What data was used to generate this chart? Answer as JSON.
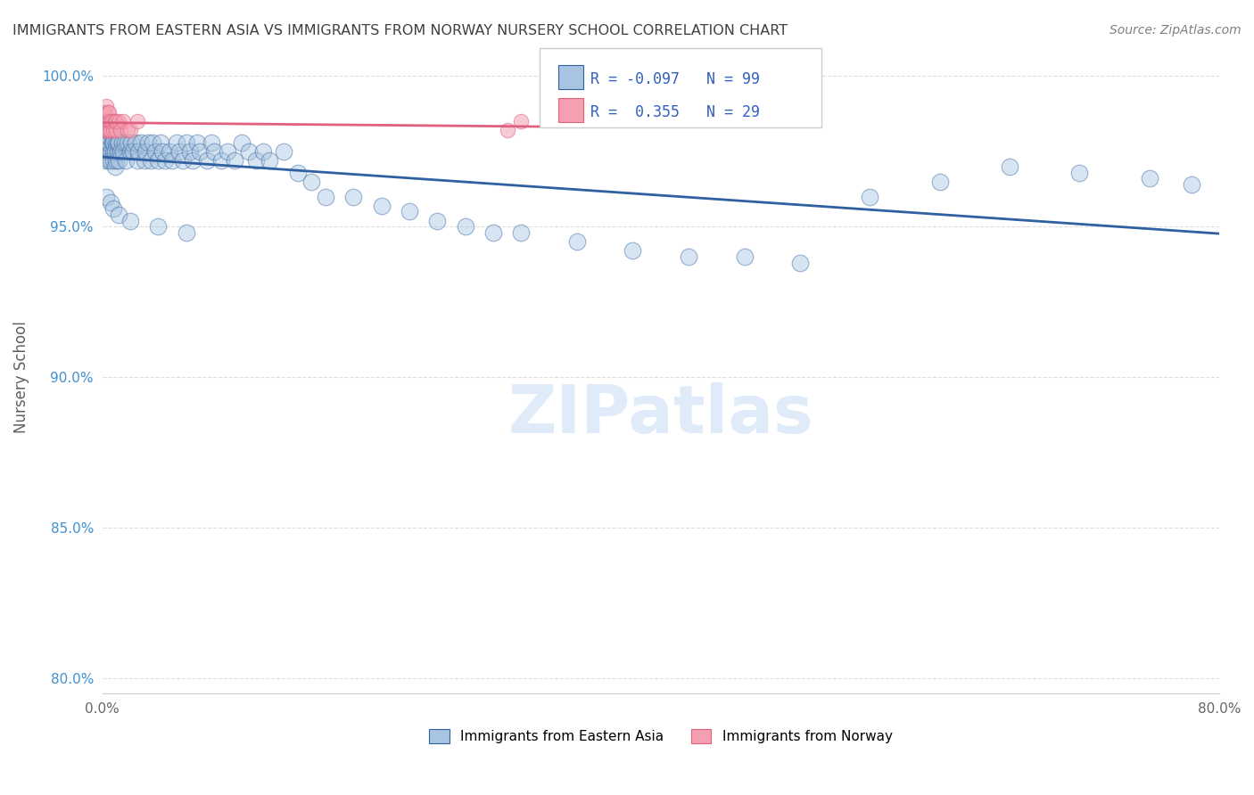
{
  "title": "IMMIGRANTS FROM EASTERN ASIA VS IMMIGRANTS FROM NORWAY NURSERY SCHOOL CORRELATION CHART",
  "source": "Source: ZipAtlas.com",
  "ylabel": "Nursery School",
  "watermark": "ZIPatlas",
  "legend_blue_r": "-0.097",
  "legend_blue_n": "99",
  "legend_pink_r": "0.355",
  "legend_pink_n": "29",
  "legend_label_blue": "Immigrants from Eastern Asia",
  "legend_label_pink": "Immigrants from Norway",
  "blue_color": "#a8c4e0",
  "pink_color": "#f4a0b0",
  "blue_line_color": "#3060a0",
  "pink_line_color": "#e06080",
  "axis_color": "#cccccc",
  "grid_color": "#dddddd",
  "title_color": "#404040",
  "ytick_color": "#4090d0",
  "r_value_color": "#3060c0",
  "background_color": "#ffffff",
  "blue_scatter_x": [
    0.001,
    0.001,
    0.002,
    0.002,
    0.003,
    0.003,
    0.004,
    0.004,
    0.005,
    0.005,
    0.005,
    0.006,
    0.006,
    0.007,
    0.007,
    0.008,
    0.008,
    0.008,
    0.009,
    0.009,
    0.01,
    0.01,
    0.011,
    0.011,
    0.012,
    0.012,
    0.013,
    0.014,
    0.015,
    0.016,
    0.017,
    0.018,
    0.02,
    0.021,
    0.022,
    0.024,
    0.025,
    0.026,
    0.028,
    0.03,
    0.031,
    0.033,
    0.035,
    0.036,
    0.038,
    0.04,
    0.042,
    0.043,
    0.045,
    0.048,
    0.05,
    0.053,
    0.055,
    0.058,
    0.06,
    0.063,
    0.065,
    0.068,
    0.07,
    0.075,
    0.078,
    0.08,
    0.085,
    0.09,
    0.095,
    0.1,
    0.105,
    0.11,
    0.115,
    0.12,
    0.13,
    0.14,
    0.15,
    0.16,
    0.18,
    0.2,
    0.22,
    0.24,
    0.26,
    0.28,
    0.3,
    0.34,
    0.38,
    0.42,
    0.46,
    0.5,
    0.55,
    0.6,
    0.65,
    0.7,
    0.75,
    0.78,
    0.003,
    0.006,
    0.008,
    0.012,
    0.02,
    0.04,
    0.06
  ],
  "blue_scatter_y": [
    0.98,
    0.975,
    0.978,
    0.972,
    0.98,
    0.975,
    0.978,
    0.982,
    0.972,
    0.978,
    0.98,
    0.975,
    0.972,
    0.978,
    0.98,
    0.972,
    0.975,
    0.978,
    0.97,
    0.975,
    0.972,
    0.978,
    0.975,
    0.978,
    0.972,
    0.978,
    0.975,
    0.978,
    0.975,
    0.978,
    0.972,
    0.978,
    0.975,
    0.978,
    0.975,
    0.978,
    0.972,
    0.975,
    0.978,
    0.972,
    0.975,
    0.978,
    0.972,
    0.978,
    0.975,
    0.972,
    0.978,
    0.975,
    0.972,
    0.975,
    0.972,
    0.978,
    0.975,
    0.972,
    0.978,
    0.975,
    0.972,
    0.978,
    0.975,
    0.972,
    0.978,
    0.975,
    0.972,
    0.975,
    0.972,
    0.978,
    0.975,
    0.972,
    0.975,
    0.972,
    0.975,
    0.968,
    0.965,
    0.96,
    0.96,
    0.957,
    0.955,
    0.952,
    0.95,
    0.948,
    0.948,
    0.945,
    0.942,
    0.94,
    0.94,
    0.938,
    0.96,
    0.965,
    0.97,
    0.968,
    0.966,
    0.964,
    0.96,
    0.958,
    0.956,
    0.954,
    0.952,
    0.95,
    0.948
  ],
  "pink_scatter_x": [
    0.001,
    0.001,
    0.002,
    0.002,
    0.002,
    0.003,
    0.003,
    0.003,
    0.004,
    0.004,
    0.004,
    0.005,
    0.005,
    0.005,
    0.006,
    0.006,
    0.007,
    0.008,
    0.009,
    0.01,
    0.01,
    0.012,
    0.013,
    0.015,
    0.018,
    0.02,
    0.025,
    0.29,
    0.3
  ],
  "pink_scatter_y": [
    0.985,
    0.988,
    0.982,
    0.985,
    0.988,
    0.982,
    0.985,
    0.99,
    0.982,
    0.985,
    0.988,
    0.982,
    0.985,
    0.988,
    0.982,
    0.985,
    0.985,
    0.982,
    0.985,
    0.982,
    0.985,
    0.985,
    0.982,
    0.985,
    0.982,
    0.982,
    0.985,
    0.982,
    0.985
  ],
  "xlim": [
    0.0,
    0.8
  ],
  "ylim": [
    0.795,
    1.005
  ],
  "yticks": [
    0.8,
    0.85,
    0.9,
    0.95,
    1.0
  ],
  "ytick_labels": [
    "80.0%",
    "85.0%",
    "90.0%",
    "95.0%",
    "100.0%"
  ],
  "xticks": [
    0.0,
    0.2,
    0.4,
    0.6,
    0.8
  ],
  "xtick_labels": [
    "0.0%",
    "",
    "",
    "",
    "80.0%"
  ],
  "marker_size_blue": 180,
  "marker_size_pink": 140,
  "marker_alpha_blue": 0.45,
  "marker_alpha_pink": 0.55
}
